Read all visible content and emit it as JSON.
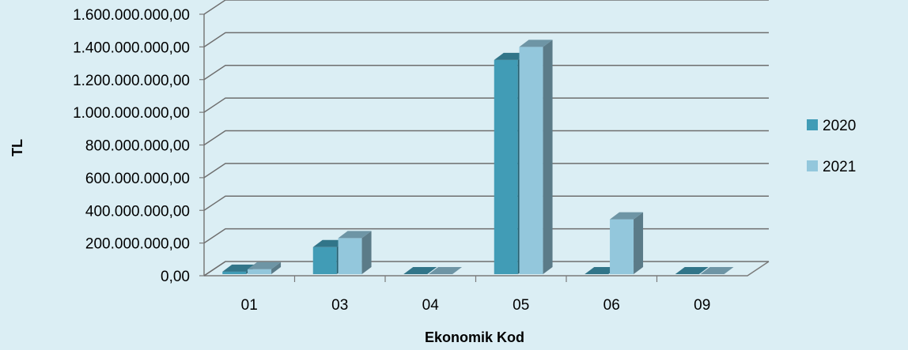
{
  "chart_data": {
    "type": "bar",
    "title": "",
    "xlabel": "Ekonomik Kod",
    "ylabel": "TL",
    "categories": [
      "01",
      "03",
      "04",
      "05",
      "06",
      "09"
    ],
    "series": [
      {
        "name": "2020",
        "color": "#419cb6",
        "values": [
          25000000,
          175000000,
          0,
          1320000000,
          0,
          0
        ]
      },
      {
        "name": "2021",
        "color": "#93c7dc",
        "values": [
          40000000,
          230000000,
          0,
          1400000000,
          345000000,
          0
        ]
      }
    ],
    "ylim": [
      0,
      1600000000
    ],
    "yticks": [
      0,
      200000000,
      400000000,
      600000000,
      800000000,
      1000000000,
      1200000000,
      1400000000,
      1600000000
    ],
    "ytick_labels": [
      "0,00",
      "200.000.000,00",
      "400.000.000,00",
      "600.000.000,00",
      "800.000.000,00",
      "1.000.000.000,00",
      "1.200.000.000,00",
      "1.400.000.000,00",
      "1.600.000.000,00"
    ],
    "grid": true,
    "legend_position": "right",
    "style": "3d-column"
  }
}
